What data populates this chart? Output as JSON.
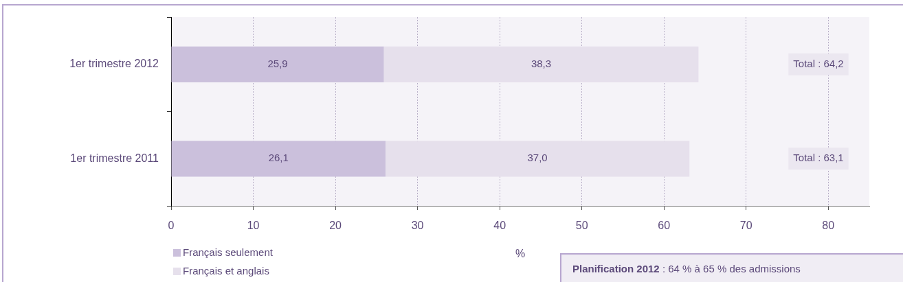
{
  "chart_data": {
    "type": "bar",
    "orientation": "horizontal",
    "stacked": true,
    "categories": [
      "1er trimestre 2012",
      "1er trimestre 2011"
    ],
    "series": [
      {
        "name": "Français seulement",
        "color": "#cbc0dc",
        "values": [
          25.9,
          26.1
        ],
        "value_labels": [
          "25,9",
          "26,1"
        ]
      },
      {
        "name": "Français et anglais",
        "color": "#e6e0ec",
        "values": [
          38.3,
          37.0
        ],
        "value_labels": [
          "38,3",
          "37,0"
        ]
      }
    ],
    "xlabel": "%",
    "xlim": [
      0,
      85
    ],
    "xticks": [
      0,
      10,
      20,
      30,
      40,
      50,
      60,
      70,
      80
    ],
    "grid": "x",
    "legend": "bottom left",
    "annotations": [
      "Total : 64,2",
      "Total : 63,1",
      "Planification 2012 : 64 % à 65 % des admissions"
    ]
  }
}
